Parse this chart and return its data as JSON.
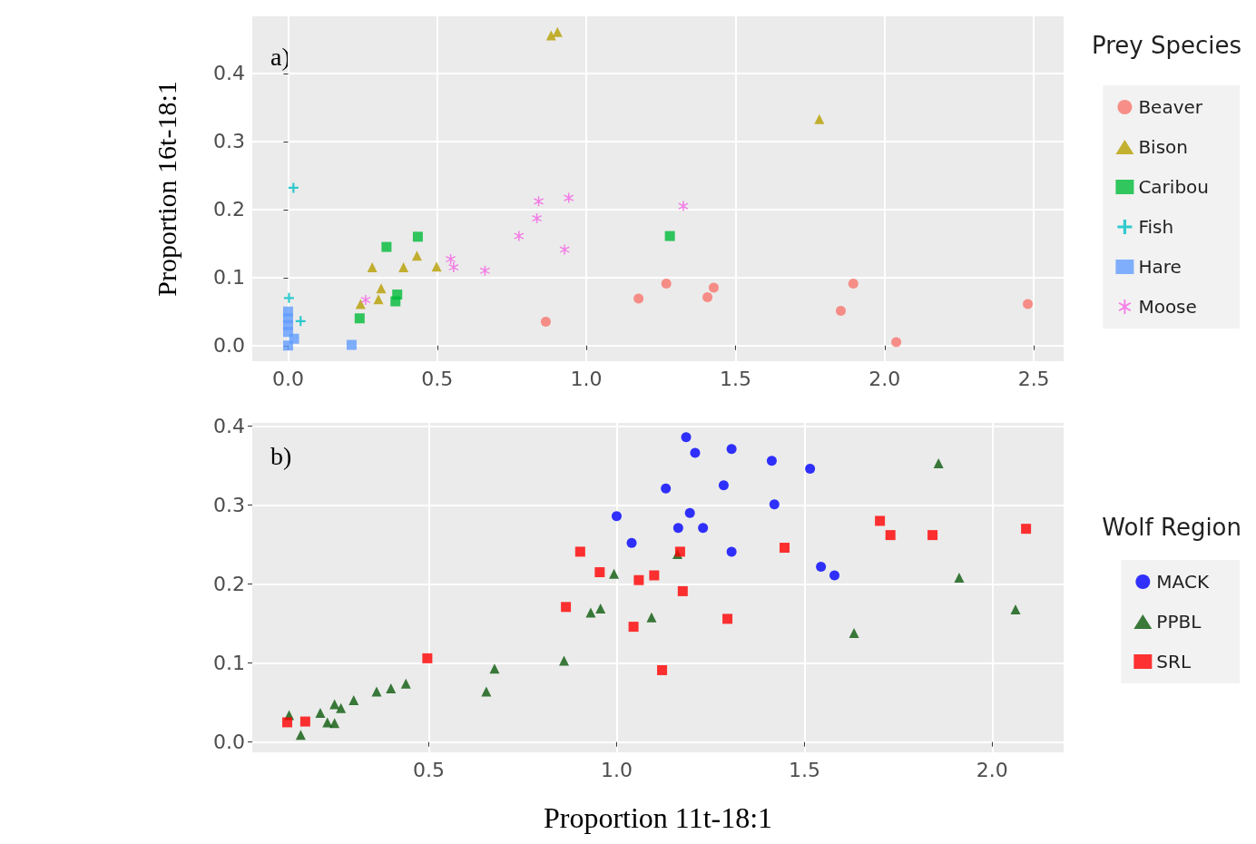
{
  "chart_data": [
    {
      "type": "scatter",
      "ylabel": "Proportion 16t-18:1",
      "legend_title": "Prey Species",
      "legend": "right",
      "grid": true,
      "annotations": [
        "a)"
      ],
      "xlim": [
        -0.12,
        2.6
      ],
      "ylim": [
        -0.023,
        0.484
      ],
      "xticks": [
        {
          "value": 0,
          "label": "0.0"
        },
        {
          "value": 0.5,
          "label": "0.5"
        },
        {
          "value": 1,
          "label": "1.0"
        },
        {
          "value": 1.5,
          "label": "1.5"
        },
        {
          "value": 2,
          "label": "2.0"
        },
        {
          "value": 2.5,
          "label": "2.5"
        }
      ],
      "yticks": [
        {
          "value": 0,
          "label": "0.0"
        },
        {
          "value": 0.1,
          "label": "0.1"
        },
        {
          "value": 0.2,
          "label": "0.2"
        },
        {
          "value": 0.3,
          "label": "0.3"
        },
        {
          "value": 0.4,
          "label": "0.4"
        }
      ],
      "series": [
        {
          "name": "Beaver",
          "color": "#f8766d",
          "marker": "circle",
          "x": [
            0.864,
            1.175,
            1.268,
            1.406,
            1.427,
            1.853,
            1.895,
            2.039,
            2.48
          ],
          "values": [
            0.035,
            0.069,
            0.091,
            0.071,
            0.085,
            0.051,
            0.091,
            0.005,
            0.061
          ]
        },
        {
          "name": "Bison",
          "color": "#b79f00",
          "marker": "triangle",
          "x": [
            0.882,
            0.903,
            1.781,
            0.282,
            0.387,
            0.432,
            0.498,
            0.312,
            0.303,
            0.243
          ],
          "values": [
            0.456,
            0.461,
            0.333,
            0.115,
            0.115,
            0.132,
            0.116,
            0.084,
            0.068,
            0.061
          ]
        },
        {
          "name": "Caribou",
          "color": "#00ba38",
          "marker": "square",
          "x": [
            0.33,
            0.435,
            0.366,
            0.36,
            0.24,
            1.28
          ],
          "values": [
            0.145,
            0.16,
            0.075,
            0.065,
            0.04,
            0.161
          ]
        },
        {
          "name": "Fish",
          "color": "#00bfc4",
          "marker": "cross",
          "x": [
            0.018,
            0.003,
            0.042
          ],
          "values": [
            0.232,
            0.07,
            0.036
          ]
        },
        {
          "name": "Hare",
          "color": "#619cff",
          "marker": "square",
          "x": [
            0.0,
            0.0,
            0.0,
            0.0,
            0.0,
            0.02,
            0.213
          ],
          "values": [
            0.05,
            0.04,
            0.03,
            0.02,
            0.0,
            0.01,
            0.001
          ]
        },
        {
          "name": "Moose",
          "color": "#f564e3",
          "marker": "star",
          "x": [
            0.26,
            0.545,
            0.555,
            0.66,
            0.774,
            0.834,
            0.84,
            0.941,
            0.927,
            1.325
          ],
          "values": [
            0.067,
            0.127,
            0.115,
            0.11,
            0.161,
            0.187,
            0.212,
            0.217,
            0.141,
            0.205
          ]
        }
      ]
    },
    {
      "type": "scatter",
      "xlabel": "Proportion 11t-18:1",
      "legend_title": "Wolf Region",
      "legend": "right",
      "grid": true,
      "annotations": [
        "b)"
      ],
      "xlim": [
        0.03,
        2.19
      ],
      "ylim": [
        -0.013,
        0.404
      ],
      "xticks": [
        {
          "value": 0.5,
          "label": "0.5"
        },
        {
          "value": 1,
          "label": "1.0"
        },
        {
          "value": 1.5,
          "label": "1.5"
        },
        {
          "value": 2,
          "label": "2.0"
        }
      ],
      "yticks": [
        {
          "value": 0,
          "label": "0.0"
        },
        {
          "value": 0.1,
          "label": "0.1"
        },
        {
          "value": 0.2,
          "label": "0.2"
        },
        {
          "value": 0.3,
          "label": "0.3"
        },
        {
          "value": 0.4,
          "label": "0.4"
        }
      ],
      "series": [
        {
          "name": "MACK",
          "color": "#0000ff",
          "marker": "circle",
          "x": [
            1.185,
            1.209,
            1.306,
            1.413,
            1.515,
            1.131,
            1.285,
            1.195,
            1.0,
            1.164,
            1.23,
            1.42,
            1.04,
            1.306,
            1.544,
            1.58
          ],
          "values": [
            0.386,
            0.366,
            0.371,
            0.356,
            0.346,
            0.321,
            0.325,
            0.29,
            0.286,
            0.271,
            0.271,
            0.301,
            0.252,
            0.241,
            0.222,
            0.211
          ]
        },
        {
          "name": "PPBL",
          "color": "#0b5a0b",
          "marker": "triangle",
          "x": [
            1.857,
            1.912,
            2.062,
            1.632,
            1.162,
            0.993,
            0.931,
            0.957,
            1.093,
            0.86,
            0.675,
            0.653,
            0.439,
            0.399,
            0.361,
            0.3,
            0.266,
            0.249,
            0.211,
            0.249,
            0.128,
            0.159,
            0.23
          ],
          "values": [
            0.353,
            0.208,
            0.168,
            0.138,
            0.238,
            0.213,
            0.164,
            0.169,
            0.158,
            0.103,
            0.093,
            0.064,
            0.074,
            0.068,
            0.064,
            0.053,
            0.043,
            0.048,
            0.037,
            0.024,
            0.034,
            0.009,
            0.025
          ]
        },
        {
          "name": "SRL",
          "color": "#ff0000",
          "marker": "square",
          "x": [
            0.903,
            0.955,
            1.059,
            1.1,
            1.169,
            1.176,
            0.865,
            1.045,
            1.121,
            0.496,
            0.171,
            0.123,
            1.295,
            1.447,
            1.701,
            1.729,
            1.841,
            2.09
          ],
          "values": [
            0.241,
            0.215,
            0.205,
            0.211,
            0.241,
            0.191,
            0.171,
            0.146,
            0.091,
            0.106,
            0.026,
            0.025,
            0.156,
            0.246,
            0.28,
            0.262,
            0.262,
            0.27
          ]
        }
      ]
    }
  ]
}
